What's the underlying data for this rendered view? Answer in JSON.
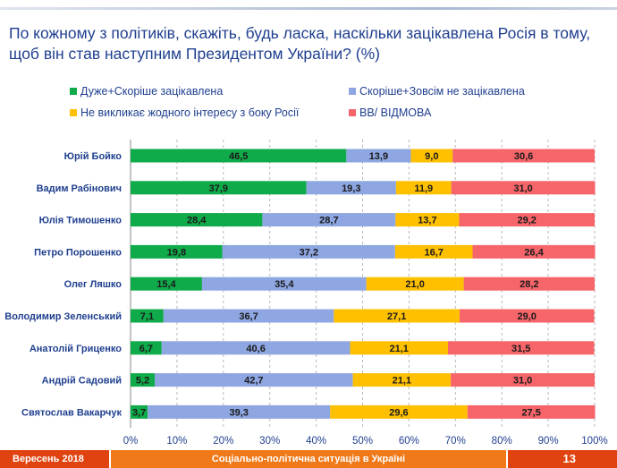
{
  "header": {
    "title": "По кожному з політиків, скажіть, будь ласка, наскільки зацікавлена Росія в тому, щоб він став наступним Президентом України? (%)"
  },
  "footer": {
    "date": "Вересень 2018",
    "center": "Соціально-політична ситуація в Україні",
    "page": "13"
  },
  "colors": {
    "green": "#0faa4a",
    "blue": "#8ea6e2",
    "yellow": "#ffc000",
    "red": "#f6656a",
    "title": "#1f3f8f"
  },
  "chart_data": {
    "type": "bar",
    "orientation": "horizontal",
    "stacked": true,
    "xlim": [
      0,
      100
    ],
    "x_ticks": [
      "0%",
      "10%",
      "20%",
      "30%",
      "40%",
      "50%",
      "60%",
      "70%",
      "80%",
      "90%",
      "100%"
    ],
    "grid": true,
    "legend_position": "top",
    "categories": [
      "Юрій Бойко",
      "Вадим Рабінович",
      "Юлія Тимошенко",
      "Петро Порошенко",
      "Олег Ляшко",
      "Володимир Зеленський",
      "Анатолій Гриценко",
      "Андрій Садовий",
      "Святослав Вакарчук"
    ],
    "series": [
      {
        "name": "Дуже+Скоріше зацікавлена",
        "color": "#0faa4a",
        "values": [
          46.5,
          37.9,
          28.4,
          19.8,
          15.4,
          7.1,
          6.7,
          5.2,
          3.7
        ],
        "labels": [
          "46,5",
          "37,9",
          "28,4",
          "19,8",
          "15,4",
          "7,1",
          "6,7",
          "5,2",
          "3,7"
        ]
      },
      {
        "name": "Скоріше+Зовсім не зацікавлена",
        "color": "#8ea6e2",
        "values": [
          13.9,
          19.3,
          28.7,
          37.2,
          35.4,
          36.7,
          40.6,
          42.7,
          39.3
        ],
        "labels": [
          "13,9",
          "19,3",
          "28,7",
          "37,2",
          "35,4",
          "36,7",
          "40,6",
          "42,7",
          "39,3"
        ]
      },
      {
        "name": "Не викликає жодного інтересу з боку Росії",
        "color": "#ffc000",
        "values": [
          9.0,
          11.9,
          13.7,
          16.7,
          21.0,
          27.1,
          21.1,
          21.1,
          29.6
        ],
        "labels": [
          "9,0",
          "11,9",
          "13,7",
          "16,7",
          "21,0",
          "27,1",
          "21,1",
          "21,1",
          "29,6"
        ]
      },
      {
        "name": "ВВ/ ВІДМОВА",
        "color": "#f6656a",
        "values": [
          30.6,
          31.0,
          29.2,
          26.4,
          28.2,
          29.0,
          31.5,
          31.0,
          27.5
        ],
        "labels": [
          "30,6",
          "31,0",
          "29,2",
          "26,4",
          "28,2",
          "29,0",
          "31,5",
          "31,0",
          "27,5"
        ]
      }
    ]
  }
}
